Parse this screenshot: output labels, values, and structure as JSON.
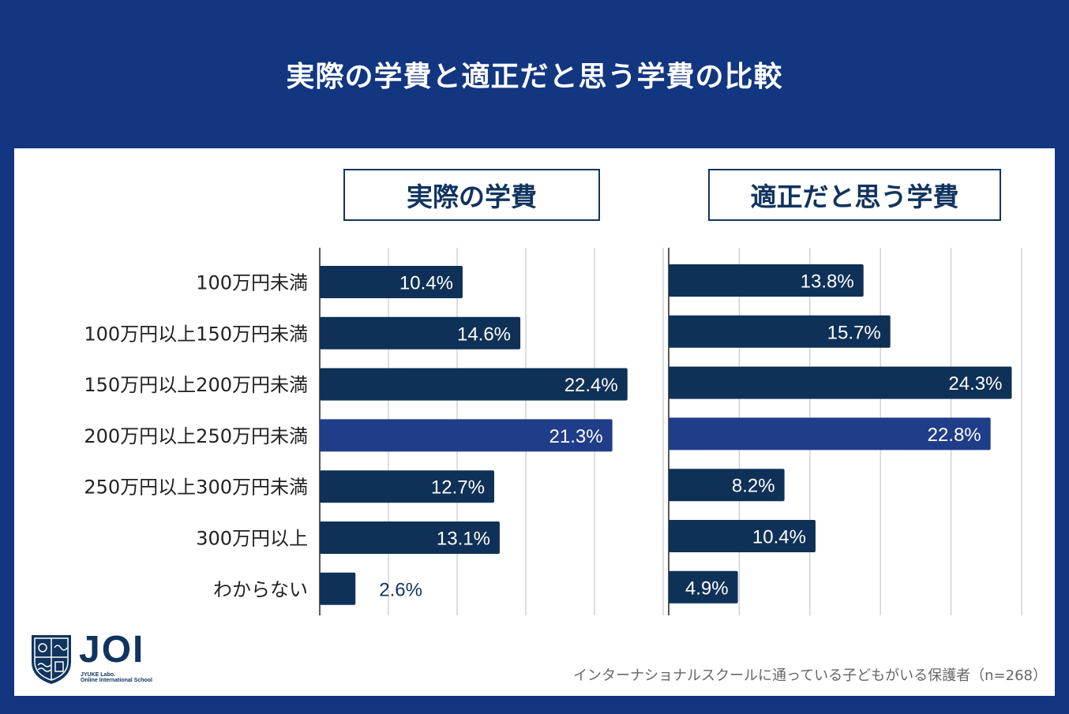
{
  "title": "実際の学費と適正だと思う学費の比較",
  "logo": {
    "name": "JOI",
    "line1": "JYUKE Labo.",
    "line2": "Online International School"
  },
  "footnote": "インターナショナルスクールに通っている子どもがいる保護者（n=268）",
  "colors": {
    "background": "#123680",
    "bar": "#0f3158",
    "bar_highlight": "#1f3d88",
    "outline_label": "#10345f"
  },
  "chart_data": [
    {
      "type": "bar",
      "orientation": "horizontal",
      "title": "実際の学費",
      "categories": [
        "100万円未満",
        "100万円以上150万円未満",
        "150万円以上200万円未満",
        "200万円以上250万円未満",
        "250万円以上300万円未満",
        "300万円以上",
        "わからない"
      ],
      "values": [
        10.4,
        14.6,
        22.4,
        21.3,
        12.7,
        13.1,
        2.6
      ],
      "labels": [
        "10.4%",
        "14.6%",
        "22.4%",
        "21.3%",
        "12.7%",
        "13.1%",
        "2.6%"
      ],
      "highlight_index": 3,
      "xlim": [
        0,
        25
      ],
      "grid": true
    },
    {
      "type": "bar",
      "orientation": "horizontal",
      "title": "適正だと思う学費",
      "categories": [
        "100万円未満",
        "100万円以上150万円未満",
        "150万円以上200万円未満",
        "200万円以上250万円未満",
        "250万円以上300万円未満",
        "300万円以上",
        "わからない"
      ],
      "values": [
        13.8,
        15.7,
        24.3,
        22.8,
        8.2,
        10.4,
        4.9
      ],
      "labels": [
        "13.8%",
        "15.7%",
        "24.3%",
        "22.8%",
        "8.2%",
        "10.4%",
        "4.9%"
      ],
      "highlight_index": 3,
      "xlim": [
        0,
        25
      ],
      "grid": true
    }
  ]
}
